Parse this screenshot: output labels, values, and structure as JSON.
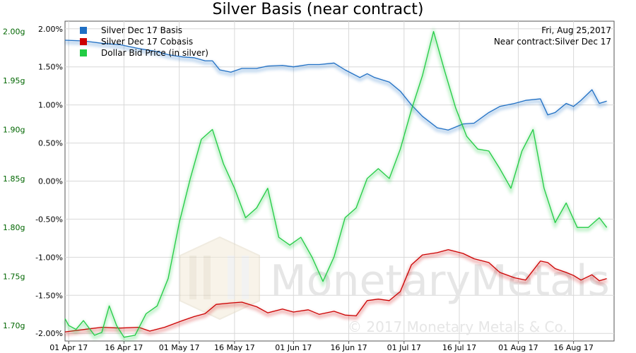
{
  "chart_data": {
    "type": "line",
    "title": "Silver Basis (near contract)",
    "info_lines": [
      "Fri, Aug 25,2017",
      "Near contract:Silver Dec 17"
    ],
    "watermark": {
      "brand": "MonetaryMetals",
      "copyright": "© 2017 Monetary Metals & Co."
    },
    "x_ticks": [
      "01 Apr 17",
      "16 Apr 17",
      "01 May 17",
      "16 May 17",
      "01 Jun 17",
      "16 Jun 17",
      "01 Jul 17",
      "16 Jul 17",
      "01 Aug 17",
      "16 Aug 17"
    ],
    "x_range": [
      "2017-03-31",
      "2017-08-27"
    ],
    "y_right_ticks": [
      "2.00%",
      "1.50%",
      "1.00%",
      "0.50%",
      "0.00%",
      "-0.50%",
      "-1.00%",
      "-1.50%",
      "-2.00%"
    ],
    "y_right_range": [
      -2.1,
      2.1
    ],
    "y_right_label_color": "#000000",
    "y_left_ticks": [
      "2.00g",
      "1.95g",
      "1.90g",
      "1.85g",
      "1.80g",
      "1.75g",
      "1.70g"
    ],
    "y_left_range": [
      1.6842,
      2.0105
    ],
    "y_left_label_color": "#006600",
    "legend_position": "top-left",
    "grid": true,
    "series": [
      {
        "name": "Silver Dec 17 Basis",
        "color": "#1f6fc4",
        "axis": "right",
        "dates": [
          "2017-03-31",
          "2017-04-05",
          "2017-04-10",
          "2017-04-15",
          "2017-04-20",
          "2017-04-25",
          "2017-04-28",
          "2017-05-02",
          "2017-05-05",
          "2017-05-08",
          "2017-05-10",
          "2017-05-12",
          "2017-05-15",
          "2017-05-18",
          "2017-05-22",
          "2017-05-25",
          "2017-05-29",
          "2017-06-01",
          "2017-06-05",
          "2017-06-08",
          "2017-06-12",
          "2017-06-15",
          "2017-06-19",
          "2017-06-21",
          "2017-06-23",
          "2017-06-27",
          "2017-06-30",
          "2017-07-03",
          "2017-07-06",
          "2017-07-10",
          "2017-07-13",
          "2017-07-17",
          "2017-07-20",
          "2017-07-24",
          "2017-07-27",
          "2017-07-31",
          "2017-08-03",
          "2017-08-07",
          "2017-08-09",
          "2017-08-11",
          "2017-08-14",
          "2017-08-16",
          "2017-08-18",
          "2017-08-21",
          "2017-08-23",
          "2017-08-25"
        ],
        "values": [
          1.85,
          1.84,
          1.81,
          1.79,
          1.74,
          1.7,
          1.66,
          1.63,
          1.62,
          1.58,
          1.58,
          1.46,
          1.43,
          1.48,
          1.48,
          1.51,
          1.52,
          1.5,
          1.53,
          1.53,
          1.55,
          1.46,
          1.36,
          1.41,
          1.36,
          1.3,
          1.18,
          1.0,
          0.85,
          0.7,
          0.67,
          0.75,
          0.76,
          0.9,
          0.98,
          1.02,
          1.06,
          1.08,
          0.87,
          0.9,
          1.02,
          0.98,
          1.06,
          1.2,
          1.02,
          1.05
        ]
      },
      {
        "name": "Silver Dec 17 Cobasis",
        "color": "#cc0000",
        "axis": "right",
        "dates": [
          "2017-03-31",
          "2017-04-05",
          "2017-04-10",
          "2017-04-15",
          "2017-04-20",
          "2017-04-23",
          "2017-04-27",
          "2017-05-02",
          "2017-05-05",
          "2017-05-08",
          "2017-05-11",
          "2017-05-15",
          "2017-05-18",
          "2017-05-22",
          "2017-05-25",
          "2017-05-29",
          "2017-06-01",
          "2017-06-05",
          "2017-06-08",
          "2017-06-12",
          "2017-06-15",
          "2017-06-18",
          "2017-06-21",
          "2017-06-24",
          "2017-06-27",
          "2017-06-30",
          "2017-07-03",
          "2017-07-06",
          "2017-07-10",
          "2017-07-13",
          "2017-07-17",
          "2017-07-20",
          "2017-07-24",
          "2017-07-27",
          "2017-07-31",
          "2017-08-03",
          "2017-08-07",
          "2017-08-09",
          "2017-08-11",
          "2017-08-14",
          "2017-08-16",
          "2017-08-18",
          "2017-08-21",
          "2017-08-23",
          "2017-08-25"
        ],
        "values": [
          -1.98,
          -1.95,
          -1.92,
          -1.93,
          -1.92,
          -1.97,
          -1.92,
          -1.83,
          -1.78,
          -1.74,
          -1.62,
          -1.6,
          -1.59,
          -1.65,
          -1.73,
          -1.68,
          -1.72,
          -1.69,
          -1.75,
          -1.71,
          -1.76,
          -1.77,
          -1.57,
          -1.55,
          -1.57,
          -1.45,
          -1.1,
          -0.97,
          -0.94,
          -0.9,
          -0.95,
          -1.02,
          -1.07,
          -1.2,
          -1.27,
          -1.3,
          -1.05,
          -1.07,
          -1.15,
          -1.2,
          -1.24,
          -1.3,
          -1.23,
          -1.31,
          -1.28
        ]
      },
      {
        "name": "Dollar Bid Price (in silver)",
        "color": "#22cc44",
        "axis": "left",
        "dates": [
          "2017-03-31",
          "2017-04-01",
          "2017-04-03",
          "2017-04-05",
          "2017-04-08",
          "2017-04-10",
          "2017-04-12",
          "2017-04-14",
          "2017-04-16",
          "2017-04-19",
          "2017-04-22",
          "2017-04-25",
          "2017-04-28",
          "2017-05-01",
          "2017-05-04",
          "2017-05-07",
          "2017-05-10",
          "2017-05-13",
          "2017-05-16",
          "2017-05-19",
          "2017-05-22",
          "2017-05-25",
          "2017-05-28",
          "2017-05-31",
          "2017-06-03",
          "2017-06-06",
          "2017-06-09",
          "2017-06-12",
          "2017-06-15",
          "2017-06-18",
          "2017-06-21",
          "2017-06-24",
          "2017-06-27",
          "2017-06-30",
          "2017-07-03",
          "2017-07-06",
          "2017-07-09",
          "2017-07-12",
          "2017-07-15",
          "2017-07-18",
          "2017-07-21",
          "2017-07-24",
          "2017-07-27",
          "2017-07-30",
          "2017-08-02",
          "2017-08-05",
          "2017-08-08",
          "2017-08-11",
          "2017-08-14",
          "2017-08-17",
          "2017-08-20",
          "2017-08-23",
          "2017-08-25"
        ],
        "values": [
          1.707,
          1.7,
          1.696,
          1.705,
          1.69,
          1.693,
          1.72,
          1.7,
          1.688,
          1.69,
          1.712,
          1.72,
          1.748,
          1.805,
          1.85,
          1.89,
          1.9,
          1.865,
          1.84,
          1.81,
          1.82,
          1.84,
          1.79,
          1.782,
          1.79,
          1.77,
          1.745,
          1.77,
          1.81,
          1.82,
          1.85,
          1.86,
          1.85,
          1.88,
          1.92,
          1.955,
          2.0,
          1.96,
          1.922,
          1.893,
          1.88,
          1.878,
          1.86,
          1.84,
          1.878,
          1.9,
          1.84,
          1.805,
          1.825,
          1.8,
          1.8,
          1.81,
          1.8
        ]
      }
    ]
  }
}
